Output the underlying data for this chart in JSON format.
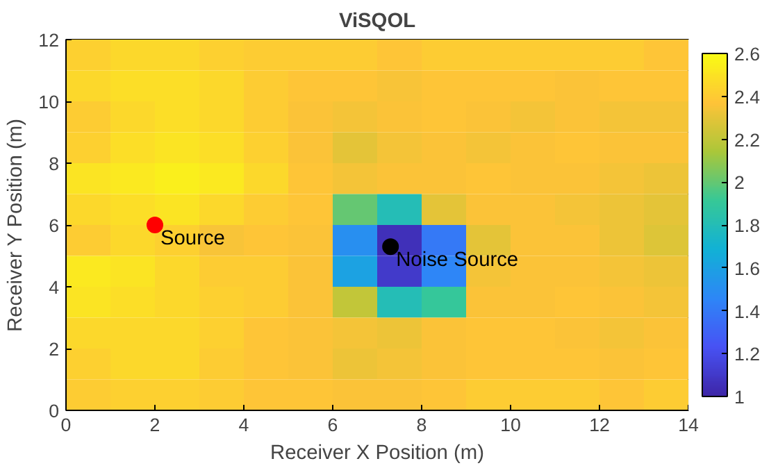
{
  "chart_data": {
    "type": "heatmap",
    "title": "ViSQOL",
    "xlabel": "Receiver X Position (m)",
    "ylabel": "Receiver Y Position (m)",
    "x": [
      0.5,
      1.5,
      2.5,
      3.5,
      4.5,
      5.5,
      6.5,
      7.5,
      8.5,
      9.5,
      10.5,
      11.5,
      12.5,
      13.5
    ],
    "y": [
      11.5,
      10.5,
      9.5,
      8.5,
      7.5,
      6.5,
      5.5,
      4.5,
      3.5,
      2.5,
      1.5,
      0.5
    ],
    "cells": [
      [
        2.42,
        2.45,
        2.45,
        2.42,
        2.4,
        2.4,
        2.4,
        2.38,
        2.4,
        2.4,
        2.4,
        2.4,
        2.4,
        2.38
      ],
      [
        2.45,
        2.48,
        2.48,
        2.45,
        2.4,
        2.38,
        2.38,
        2.35,
        2.38,
        2.38,
        2.38,
        2.36,
        2.38,
        2.38
      ],
      [
        2.4,
        2.45,
        2.48,
        2.45,
        2.4,
        2.36,
        2.34,
        2.36,
        2.38,
        2.36,
        2.34,
        2.36,
        2.34,
        2.34
      ],
      [
        2.42,
        2.48,
        2.5,
        2.48,
        2.42,
        2.36,
        2.3,
        2.34,
        2.36,
        2.34,
        2.36,
        2.38,
        2.36,
        2.36
      ],
      [
        2.5,
        2.52,
        2.55,
        2.52,
        2.45,
        2.38,
        2.34,
        2.36,
        2.36,
        2.38,
        2.36,
        2.36,
        2.34,
        2.32
      ],
      [
        2.45,
        2.48,
        2.5,
        2.45,
        2.4,
        2.38,
        2.0,
        1.8,
        2.3,
        2.36,
        2.36,
        2.34,
        2.32,
        2.3
      ],
      [
        2.4,
        2.45,
        2.42,
        2.35,
        2.38,
        2.36,
        1.5,
        1.05,
        1.4,
        2.3,
        2.36,
        2.36,
        2.32,
        2.28
      ],
      [
        2.52,
        2.5,
        2.45,
        2.4,
        2.4,
        2.36,
        1.6,
        1.1,
        1.45,
        2.34,
        2.36,
        2.36,
        2.34,
        2.32
      ],
      [
        2.5,
        2.48,
        2.45,
        2.42,
        2.4,
        2.36,
        2.2,
        1.8,
        1.9,
        2.36,
        2.36,
        2.38,
        2.36,
        2.34
      ],
      [
        2.45,
        2.45,
        2.45,
        2.42,
        2.38,
        2.36,
        2.34,
        2.32,
        2.36,
        2.38,
        2.38,
        2.36,
        2.34,
        2.36
      ],
      [
        2.42,
        2.45,
        2.45,
        2.4,
        2.38,
        2.36,
        2.32,
        2.34,
        2.36,
        2.38,
        2.38,
        2.38,
        2.36,
        2.38
      ],
      [
        2.4,
        2.42,
        2.42,
        2.4,
        2.38,
        2.38,
        2.36,
        2.36,
        2.38,
        2.4,
        2.4,
        2.4,
        2.38,
        2.4
      ]
    ],
    "xlim": [
      0,
      14
    ],
    "xticks": [
      0,
      2,
      4,
      6,
      8,
      10,
      12,
      14
    ],
    "ylim": [
      0,
      12
    ],
    "yticks": [
      0,
      2,
      4,
      6,
      8,
      10,
      12
    ],
    "clim": [
      1,
      2.6
    ],
    "cticks": [
      1,
      1.2,
      1.4,
      1.6,
      1.8,
      2,
      2.2,
      2.4,
      2.6
    ],
    "series": [
      {
        "type": "scatter",
        "name": "Source",
        "color": "#ff0000",
        "x": [
          2
        ],
        "values": [
          6
        ]
      },
      {
        "type": "scatter",
        "name": "Noise Source",
        "color": "#000000",
        "x": [
          7.3
        ],
        "values": [
          5.3
        ]
      }
    ],
    "grid": false
  }
}
